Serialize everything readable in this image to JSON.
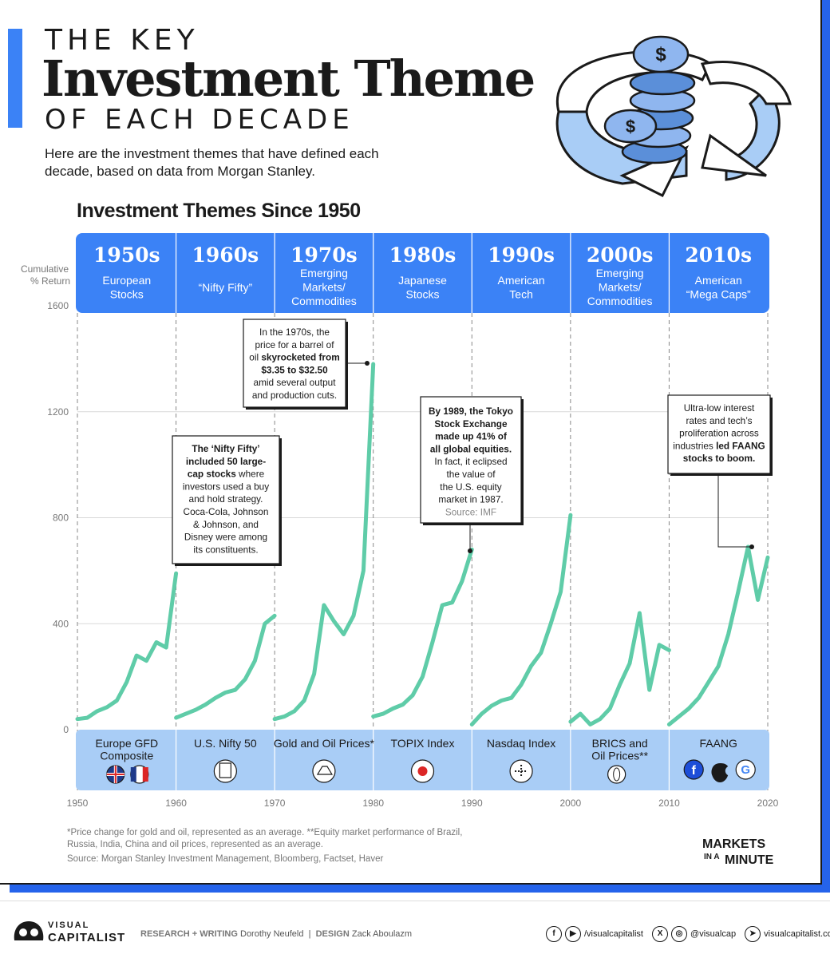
{
  "title": {
    "line1": "THE KEY",
    "line2": "Investment Theme",
    "line3": "OF EACH DECADE"
  },
  "subtitle": "Here are the investment themes that have defined each decade, based on data from Morgan Stanley.",
  "chart_data": {
    "type": "line",
    "title": "Investment Themes Since 1950",
    "ylabel": "Cumulative % Return",
    "ylim": [
      0,
      1600
    ],
    "yticks": [
      "0",
      "400",
      "800",
      "1200",
      "1600"
    ],
    "xlim": [
      1950,
      2020
    ],
    "xticks": [
      "1950",
      "1960",
      "1970",
      "1980",
      "1990",
      "2000",
      "2010",
      "2020"
    ],
    "grid": true,
    "decades": [
      {
        "decade": "1950s",
        "theme": [
          "European",
          "Stocks"
        ],
        "index": [
          "Europe GFD",
          "Composite"
        ]
      },
      {
        "decade": "1960s",
        "theme": [
          "“Nifty Fifty”"
        ],
        "index": [
          "U.S. Nifty 50"
        ]
      },
      {
        "decade": "1970s",
        "theme": [
          "Emerging",
          "Markets/",
          "Commodities"
        ],
        "index": [
          "Gold and Oil Prices*"
        ]
      },
      {
        "decade": "1980s",
        "theme": [
          "Japanese",
          "Stocks"
        ],
        "index": [
          "TOPIX Index"
        ]
      },
      {
        "decade": "1990s",
        "theme": [
          "American",
          "Tech"
        ],
        "index": [
          "Nasdaq Index"
        ]
      },
      {
        "decade": "2000s",
        "theme": [
          "Emerging",
          "Markets/",
          "Commodities"
        ],
        "index": [
          "BRICS and",
          "Oil Prices**"
        ]
      },
      {
        "decade": "2010s",
        "theme": [
          "American",
          "“Mega Caps”"
        ],
        "index": [
          "FAANG"
        ]
      }
    ],
    "series": [
      {
        "x": [
          1950,
          1951,
          1952,
          1953,
          1954,
          1955,
          1956,
          1957,
          1958,
          1959,
          1960
        ],
        "values": [
          40,
          45,
          70,
          85,
          110,
          180,
          280,
          260,
          330,
          310,
          590
        ]
      },
      {
        "x": [
          1960,
          1961,
          1962,
          1963,
          1964,
          1965,
          1966,
          1967,
          1968,
          1969,
          1970
        ],
        "values": [
          45,
          60,
          75,
          95,
          120,
          140,
          150,
          190,
          260,
          400,
          430
        ]
      },
      {
        "x": [
          1970,
          1971,
          1972,
          1973,
          1974,
          1975,
          1976,
          1977,
          1978,
          1979,
          1980
        ],
        "values": [
          40,
          50,
          70,
          110,
          210,
          470,
          410,
          360,
          430,
          600,
          1380
        ]
      },
      {
        "x": [
          1980,
          1981,
          1982,
          1983,
          1984,
          1985,
          1986,
          1987,
          1988,
          1989,
          1990
        ],
        "values": [
          50,
          60,
          80,
          95,
          130,
          200,
          330,
          470,
          480,
          560,
          680
        ]
      },
      {
        "x": [
          1990,
          1991,
          1992,
          1993,
          1994,
          1995,
          1996,
          1997,
          1998,
          1999,
          2000
        ],
        "values": [
          20,
          60,
          90,
          110,
          120,
          170,
          240,
          290,
          400,
          520,
          810
        ]
      },
      {
        "x": [
          2000,
          2001,
          2002,
          2003,
          2004,
          2005,
          2006,
          2007,
          2008,
          2009,
          2010
        ],
        "values": [
          30,
          60,
          20,
          40,
          80,
          170,
          250,
          440,
          150,
          320,
          300
        ]
      },
      {
        "x": [
          2010,
          2011,
          2012,
          2013,
          2014,
          2015,
          2016,
          2017,
          2018,
          2019,
          2020
        ],
        "values": [
          20,
          50,
          80,
          120,
          180,
          240,
          360,
          520,
          690,
          490,
          650
        ]
      }
    ],
    "annotations": [
      {
        "text": [
          [
            {
              "t": "The ‘Nifty Fifty’",
              "b": true
            }
          ],
          [
            {
              "t": "included 50 large-",
              "b": true
            }
          ],
          [
            {
              "t": "cap stocks",
              "b": true
            },
            {
              "t": " where"
            }
          ],
          [
            {
              "t": "investors used a buy"
            }
          ],
          [
            {
              "t": "and hold strategy."
            }
          ],
          [
            {
              "t": "Coca-Cola, Johnson"
            }
          ],
          [
            {
              "t": "& Johnson, and"
            }
          ],
          [
            {
              "t": "Disney were among"
            }
          ],
          [
            {
              "t": "its constituents."
            }
          ]
        ]
      },
      {
        "text": [
          [
            {
              "t": "In the 1970s, the"
            }
          ],
          [
            {
              "t": "price for a barrel of"
            }
          ],
          [
            {
              "t": "oil "
            },
            {
              "t": "skyrocketed from",
              "b": true
            }
          ],
          [
            {
              "t": "$3.35 to $32.50",
              "b": true
            }
          ],
          [
            {
              "t": "amid several output"
            }
          ],
          [
            {
              "t": "and production cuts."
            }
          ]
        ]
      },
      {
        "text": [
          [
            {
              "t": "By 1989, the Tokyo",
              "b": true
            }
          ],
          [
            {
              "t": "Stock Exchange",
              "b": true
            }
          ],
          [
            {
              "t": "made up 41% of",
              "b": true
            }
          ],
          [
            {
              "t": "all global equities.",
              "b": true
            }
          ],
          [
            {
              "t": "In fact, it eclipsed"
            }
          ],
          [
            {
              "t": "the value of"
            }
          ],
          [
            {
              "t": "the U.S. equity"
            }
          ],
          [
            {
              "t": "market in 1987."
            }
          ],
          [
            {
              "t": "Source: IMF",
              "g": true
            }
          ]
        ]
      },
      {
        "text": [
          [
            {
              "t": "Ultra-low interest"
            }
          ],
          [
            {
              "t": "rates and tech’s"
            }
          ],
          [
            {
              "t": "proliferation across"
            }
          ],
          [
            {
              "t": "industries "
            },
            {
              "t": "led FAANG",
              "b": true
            }
          ],
          [
            {
              "t": "stocks to boom.",
              "b": true
            }
          ]
        ]
      }
    ],
    "colors": {
      "line": "#5fcca8",
      "header": "#3b82f6",
      "footer_band": "#a9cdf6",
      "text_dark": "#1a1a1a"
    }
  },
  "footnote": "*Price change for gold and oil, represented as an average. **Equity market performance of Brazil, Russia, India, China and oil prices, represented as an average.",
  "source": "Source: Morgan Stanley Investment Management, Bloomberg, Factset, Haver",
  "markets_logo": [
    "MARKETS",
    "IN A",
    "MINUTE"
  ],
  "footer": {
    "brand_top": "VISUAL",
    "brand_bottom": "CAPITALIST",
    "research_label": "RESEARCH + WRITING",
    "research_name": "Dorothy Neufeld",
    "sep": "|",
    "design_label": "DESIGN",
    "design_name": "Zack Aboulazm",
    "handle1": "/visualcapitalist",
    "handle2": "@visualcap",
    "website": "visualcapitalist.com"
  },
  "icons": [
    "uk-flag-icon",
    "france-flag-icon",
    "building-icon",
    "gold-bars-icon",
    "japan-flag-icon",
    "nasdaq-icon",
    "globe-icon",
    "facebook-icon",
    "apple-icon",
    "google-icon"
  ]
}
